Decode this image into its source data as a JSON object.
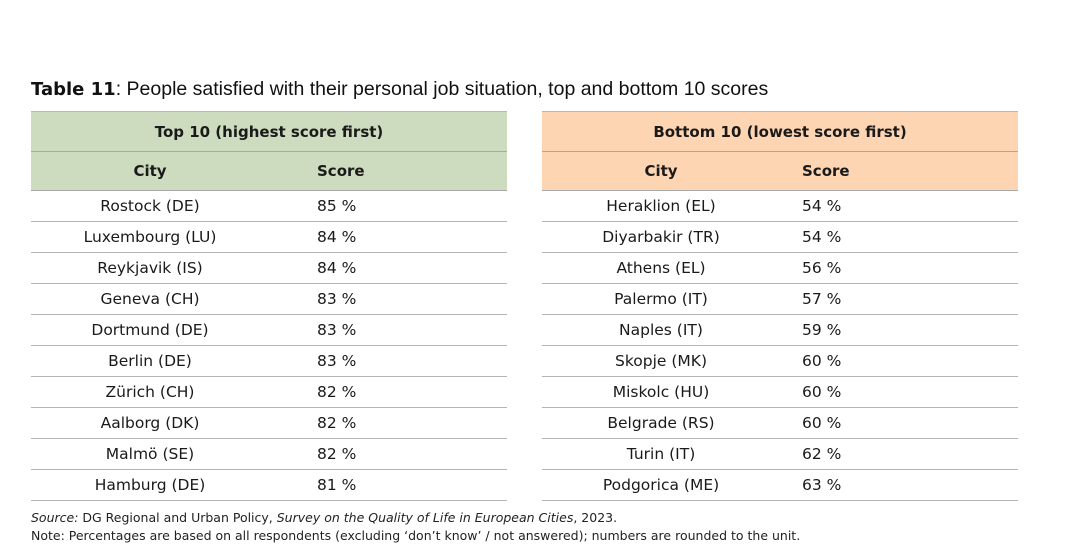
{
  "caption": {
    "label": "Table 11",
    "text": ": People satisfied with their personal job situation, top and bottom 10 scores"
  },
  "top_table": {
    "title": "Top 10 (highest score first)",
    "headers": {
      "city": "City",
      "score": "Score"
    },
    "rows": [
      {
        "city": "Rostock (DE)",
        "score": "85 %"
      },
      {
        "city": "Luxembourg (LU)",
        "score": "84 %"
      },
      {
        "city": "Reykjavik (IS)",
        "score": "84 %"
      },
      {
        "city": "Geneva (CH)",
        "score": "83 %"
      },
      {
        "city": "Dortmund (DE)",
        "score": "83 %"
      },
      {
        "city": "Berlin (DE)",
        "score": "83 %"
      },
      {
        "city": "Zürich (CH)",
        "score": "82 %"
      },
      {
        "city": "Aalborg (DK)",
        "score": "82 %"
      },
      {
        "city": "Malmö (SE)",
        "score": "82 %"
      },
      {
        "city": "Hamburg (DE)",
        "score": "81 %"
      }
    ]
  },
  "bottom_table": {
    "title": "Bottom 10 (lowest score first)",
    "headers": {
      "city": "City",
      "score": "Score"
    },
    "rows": [
      {
        "city": "Heraklion (EL)",
        "score": "54 %"
      },
      {
        "city": "Diyarbakir (TR)",
        "score": "54 %"
      },
      {
        "city": "Athens (EL)",
        "score": "56 %"
      },
      {
        "city": "Palermo (IT)",
        "score": "57 %"
      },
      {
        "city": "Naples (IT)",
        "score": "59 %"
      },
      {
        "city": "Skopje (MK)",
        "score": "60 %"
      },
      {
        "city": "Miskolc (HU)",
        "score": "60 %"
      },
      {
        "city": "Belgrade (RS)",
        "score": "60 %"
      },
      {
        "city": "Turin (IT)",
        "score": "62 %"
      },
      {
        "city": "Podgorica (ME)",
        "score": "63 %"
      }
    ]
  },
  "notes": {
    "source_label": "Source:",
    "source_org": " DG Regional and Urban Policy, ",
    "source_title": "Survey on the Quality of Life in European Cities",
    "source_year": ", 2023.",
    "note": "Note: Percentages are based on all respondents (excluding ‘don’t know’ / not answered); numbers are rounded to the unit."
  },
  "colors": {
    "top_header_bg": "#cddcbf",
    "bottom_header_bg": "#fdd5b2"
  }
}
